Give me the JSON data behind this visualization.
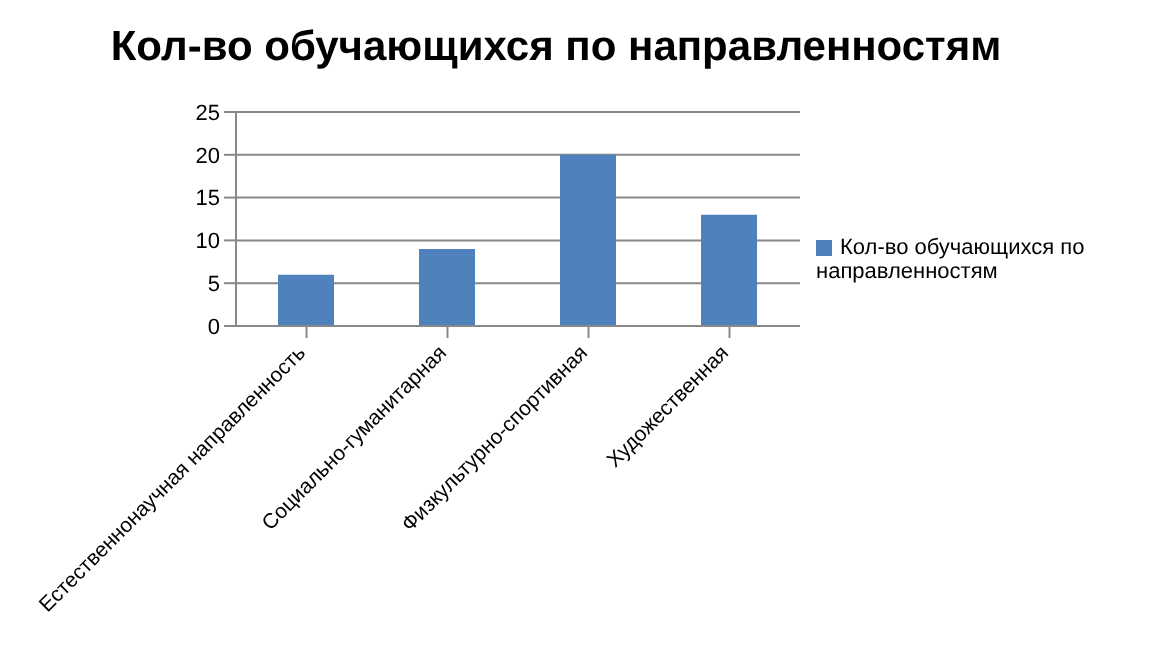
{
  "chart_data": {
    "type": "bar",
    "title": "Кол-во обучающихся по направленностям",
    "categories": [
      "Естественнонаучная  направленность",
      "Социально-гуманитарная",
      "Физкультурно-спортивная",
      "Художественная"
    ],
    "series": [
      {
        "name": "Кол-во обучающихся по направленностям",
        "color": "#4f81bd",
        "values": [
          6,
          9,
          20,
          13
        ]
      }
    ],
    "ylim": [
      0,
      25
    ],
    "yticks": [
      0,
      5,
      10,
      15,
      20,
      25
    ],
    "grid": "y",
    "legend": "right"
  }
}
